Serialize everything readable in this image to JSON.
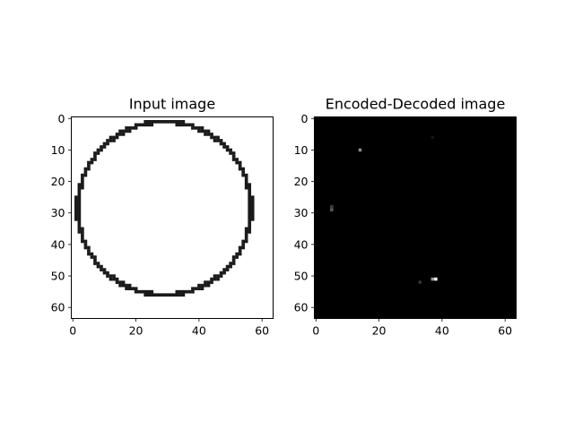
{
  "chart_data": [
    {
      "type": "heatmap",
      "title": "Input image",
      "xlabel": "",
      "ylabel": "",
      "xlim": [
        0,
        64
      ],
      "ylim": [
        0,
        64
      ],
      "x_ticks": [
        0,
        20,
        40,
        60
      ],
      "y_ticks": [
        0,
        10,
        20,
        30,
        40,
        50,
        60
      ],
      "grid": false,
      "colormap": "gray",
      "background_value": 1,
      "shape": {
        "type": "circle-outline",
        "center": [
          29,
          28.5
        ],
        "radius": 27.5,
        "value": 0.1
      }
    },
    {
      "type": "heatmap",
      "title": "Encoded-Decoded image",
      "xlabel": "",
      "ylabel": "",
      "xlim": [
        0,
        64
      ],
      "ylim": [
        0,
        64
      ],
      "x_ticks": [
        0,
        20,
        40,
        60
      ],
      "y_ticks": [
        0,
        10,
        20,
        30,
        40,
        50,
        60
      ],
      "grid": false,
      "colormap": "gray",
      "background_value": 0,
      "points": [
        {
          "x": 14,
          "y": 10,
          "value": 0.55
        },
        {
          "x": 5,
          "y": 28,
          "value": 0.25
        },
        {
          "x": 5,
          "y": 29,
          "value": 0.35
        },
        {
          "x": 37,
          "y": 6,
          "value": 0.08
        },
        {
          "x": 33,
          "y": 52,
          "value": 0.2
        },
        {
          "x": 38,
          "y": 51,
          "value": 1.0
        },
        {
          "x": 37,
          "y": 51,
          "value": 0.6
        }
      ]
    }
  ]
}
